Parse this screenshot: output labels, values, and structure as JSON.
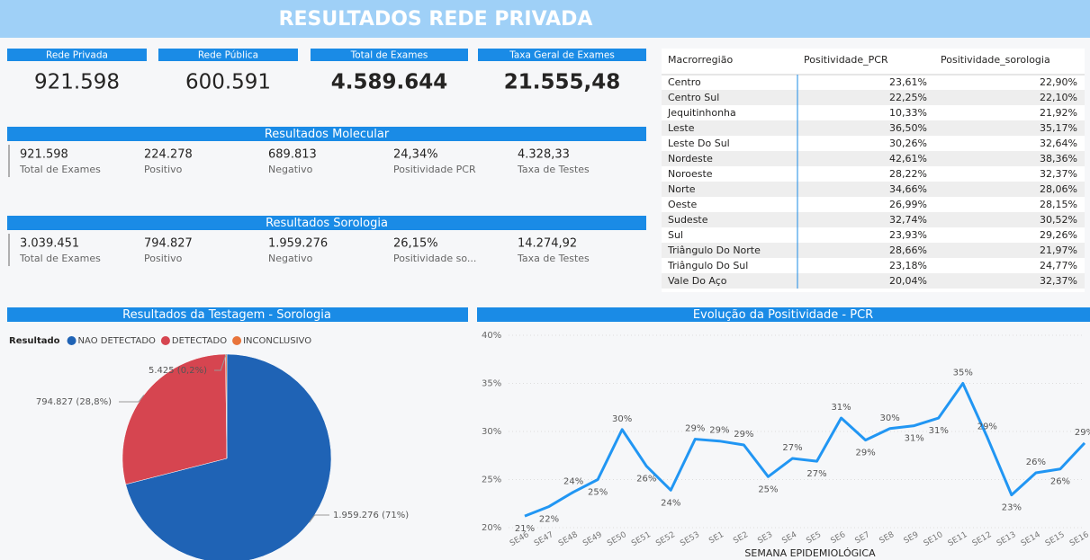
{
  "header": {
    "title": "RESULTADOS REDE PRIVADA"
  },
  "kpis": [
    {
      "label": "Rede Privada",
      "value": "921.598"
    },
    {
      "label": "Rede Pública",
      "value": "600.591"
    },
    {
      "label": "Total de Exames",
      "value": "4.589.644"
    },
    {
      "label": "Taxa Geral de Exames",
      "value": "21.555,48"
    }
  ],
  "sections": [
    {
      "title": "Resultados Molecular",
      "items": [
        {
          "value": "921.598",
          "label": "Total de Exames"
        },
        {
          "value": "224.278",
          "label": "Positivo"
        },
        {
          "value": "689.813",
          "label": "Negativo"
        },
        {
          "value": "24,34%",
          "label": "Positividade PCR"
        },
        {
          "value": "4.328,33",
          "label": "Taxa de Testes"
        }
      ]
    },
    {
      "title": "Resultados Sorologia",
      "items": [
        {
          "value": "3.039.451",
          "label": "Total de Exames"
        },
        {
          "value": "794.827",
          "label": "Positivo"
        },
        {
          "value": "1.959.276",
          "label": "Negativo"
        },
        {
          "value": "26,15%",
          "label": "Positividade so..."
        },
        {
          "value": "14.274,92",
          "label": "Taxa de Testes"
        }
      ]
    }
  ],
  "table": {
    "columns": [
      "Macrorregião",
      "Positividade_PCR",
      "Positividade_sorologia"
    ],
    "rows": [
      [
        "Centro",
        "23,61%",
        "22,90%"
      ],
      [
        "Centro Sul",
        "22,25%",
        "22,10%"
      ],
      [
        "Jequitinhonha",
        "10,33%",
        "21,92%"
      ],
      [
        "Leste",
        "36,50%",
        "35,17%"
      ],
      [
        "Leste Do Sul",
        "30,26%",
        "32,64%"
      ],
      [
        "Nordeste",
        "42,61%",
        "38,36%"
      ],
      [
        "Noroeste",
        "28,22%",
        "32,37%"
      ],
      [
        "Norte",
        "34,66%",
        "28,06%"
      ],
      [
        "Oeste",
        "26,99%",
        "28,15%"
      ],
      [
        "Sudeste",
        "32,74%",
        "30,52%"
      ],
      [
        "Sul",
        "23,93%",
        "29,26%"
      ],
      [
        "Triângulo Do Norte",
        "28,66%",
        "21,97%"
      ],
      [
        "Triângulo Do Sul",
        "23,18%",
        "24,77%"
      ],
      [
        "Vale Do Aço",
        "20,04%",
        "32,37%"
      ]
    ]
  },
  "chart_data": [
    {
      "type": "pie",
      "title": "Resultados da Testagem - Sorologia",
      "legend_title": "Resultado",
      "categories": [
        "NAO DETECTADO",
        "DETECTADO",
        "INCONCLUSIVO"
      ],
      "values": [
        1959276,
        794827,
        5425
      ],
      "value_labels": [
        "1.959.276 (71%)",
        "794.827 (28,8%)",
        "5.425 (0,2%)"
      ],
      "colors": [
        "#1f63b5",
        "#d64550",
        "#e8743b"
      ]
    },
    {
      "type": "line",
      "title": "Evolução da Positividade - PCR",
      "x_label": "SEMANA EPIDEMIOLÓGICA",
      "categories": [
        "SE46",
        "SE47",
        "SE48",
        "SE49",
        "SE50",
        "SE51",
        "SE52",
        "SE53",
        "SE1",
        "SE2",
        "SE3",
        "SE4",
        "SE5",
        "SE6",
        "SE7",
        "SE8",
        "SE9",
        "SE10",
        "SE11",
        "SE12",
        "SE13",
        "SE14",
        "SE15",
        "SE16"
      ],
      "values": [
        21.2,
        22.2,
        23.7,
        25.0,
        30.2,
        26.4,
        23.9,
        29.2,
        29.0,
        28.6,
        25.3,
        27.2,
        26.9,
        31.4,
        29.1,
        30.3,
        30.6,
        31.4,
        35.0,
        29.4,
        23.4,
        25.7,
        26.1,
        28.8
      ],
      "value_labels": [
        "21%",
        "22%",
        "24%",
        "25%",
        "30%",
        "26%",
        "24%",
        "29%",
        "29%",
        "29%",
        "25%",
        "27%",
        "27%",
        "31%",
        "29%",
        "30%",
        "31%",
        "31%",
        "35%",
        "29%",
        "23%",
        "26%",
        "26%",
        "29%"
      ],
      "color": "#2196f3",
      "ylim": [
        20,
        40
      ],
      "yticks": [
        {
          "value": 20,
          "label": "20%"
        },
        {
          "value": 25,
          "label": "25%"
        },
        {
          "value": 30,
          "label": "30%"
        },
        {
          "value": 35,
          "label": "35%"
        },
        {
          "value": 40,
          "label": "40%"
        }
      ],
      "grid": true
    }
  ]
}
